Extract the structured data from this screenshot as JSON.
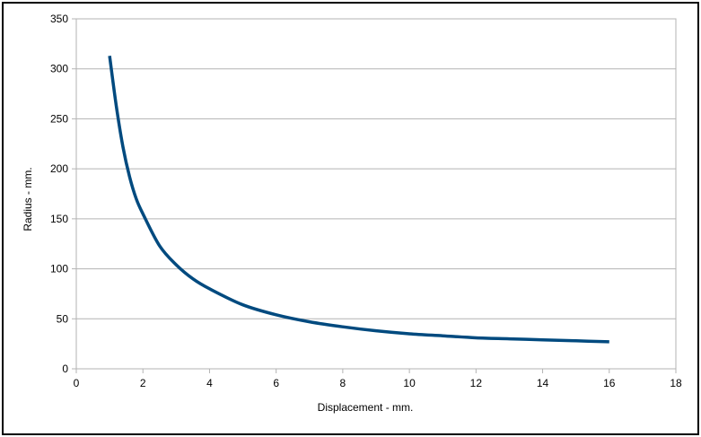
{
  "chart_data": {
    "type": "line",
    "title": "",
    "xlabel": "Displacement - mm.",
    "ylabel": "Radius - mm.",
    "xlim": [
      0,
      18
    ],
    "ylim": [
      0,
      350
    ],
    "xticks": [
      0,
      2,
      4,
      6,
      8,
      10,
      12,
      14,
      16,
      18
    ],
    "yticks": [
      0,
      50,
      100,
      150,
      200,
      250,
      300,
      350
    ],
    "grid": "horizontal",
    "legend": "none",
    "series": [
      {
        "color": "#004a7f",
        "x": [
          1,
          1.2,
          1.4,
          1.6,
          1.8,
          2,
          2.5,
          3,
          3.5,
          4,
          5,
          6,
          7,
          8,
          9,
          10,
          11,
          12,
          13,
          14,
          15,
          16
        ],
        "y": [
          313,
          263,
          222,
          192,
          170,
          155,
          123,
          104,
          90,
          80,
          64,
          54,
          47,
          42,
          38,
          35,
          33,
          31,
          30,
          29,
          28,
          27
        ]
      }
    ]
  }
}
